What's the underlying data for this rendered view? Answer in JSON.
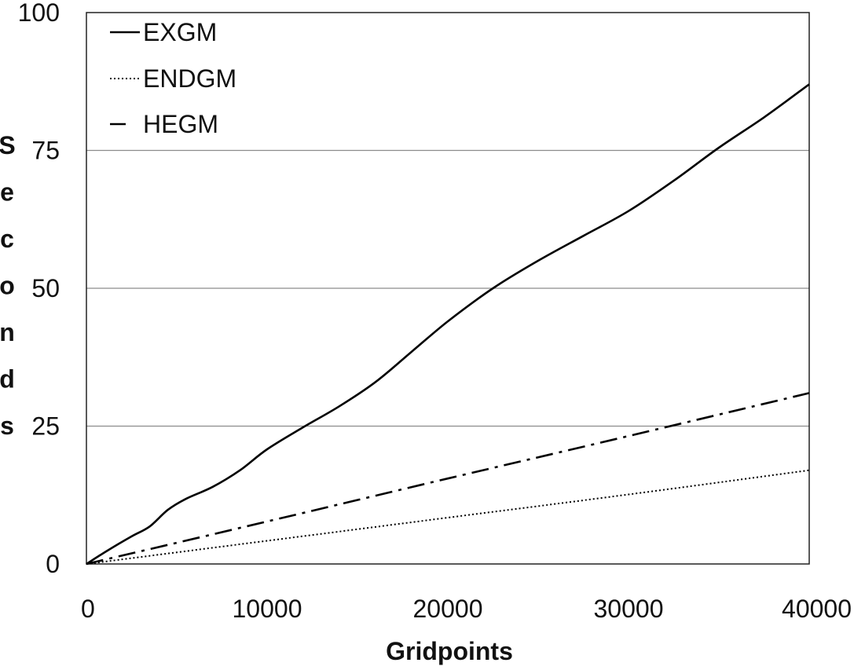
{
  "chart_data": {
    "type": "line",
    "title": "",
    "xlabel": "Gridpoints",
    "ylabel": "Seconds",
    "xlim": [
      0,
      40000
    ],
    "ylim": [
      0,
      100
    ],
    "x_ticks": [
      "0",
      "10000",
      "20000",
      "30000",
      "40000"
    ],
    "y_ticks": [
      "0",
      "25",
      "50",
      "75",
      "100"
    ],
    "grid": "horizontal",
    "legend_position": "top-left",
    "series": [
      {
        "name": "EXGM",
        "style": "solid",
        "x": [
          0,
          1200,
          2500,
          3500,
          4500,
          5500,
          7000,
          8500,
          10000,
          12000,
          14000,
          16000,
          18000,
          20000,
          22500,
          25000,
          27500,
          30000,
          32500,
          35000,
          37500,
          40000
        ],
        "y": [
          0,
          2.5,
          5,
          6.8,
          9.8,
          11.8,
          14,
          17,
          20.8,
          24.8,
          28.6,
          33,
          38.5,
          44,
          50,
          55,
          59.5,
          64,
          69.5,
          75.5,
          81,
          87
        ]
      },
      {
        "name": "ENDGM",
        "style": "dotted",
        "x": [
          0,
          10000,
          20000,
          30000,
          40000
        ],
        "y": [
          0,
          4.2,
          8.4,
          12.6,
          17
        ]
      },
      {
        "name": "HEGM",
        "style": "dash-dot",
        "x": [
          0,
          10000,
          20000,
          30000,
          40000
        ],
        "y": [
          0,
          7.7,
          15.5,
          23.2,
          31
        ]
      }
    ]
  }
}
